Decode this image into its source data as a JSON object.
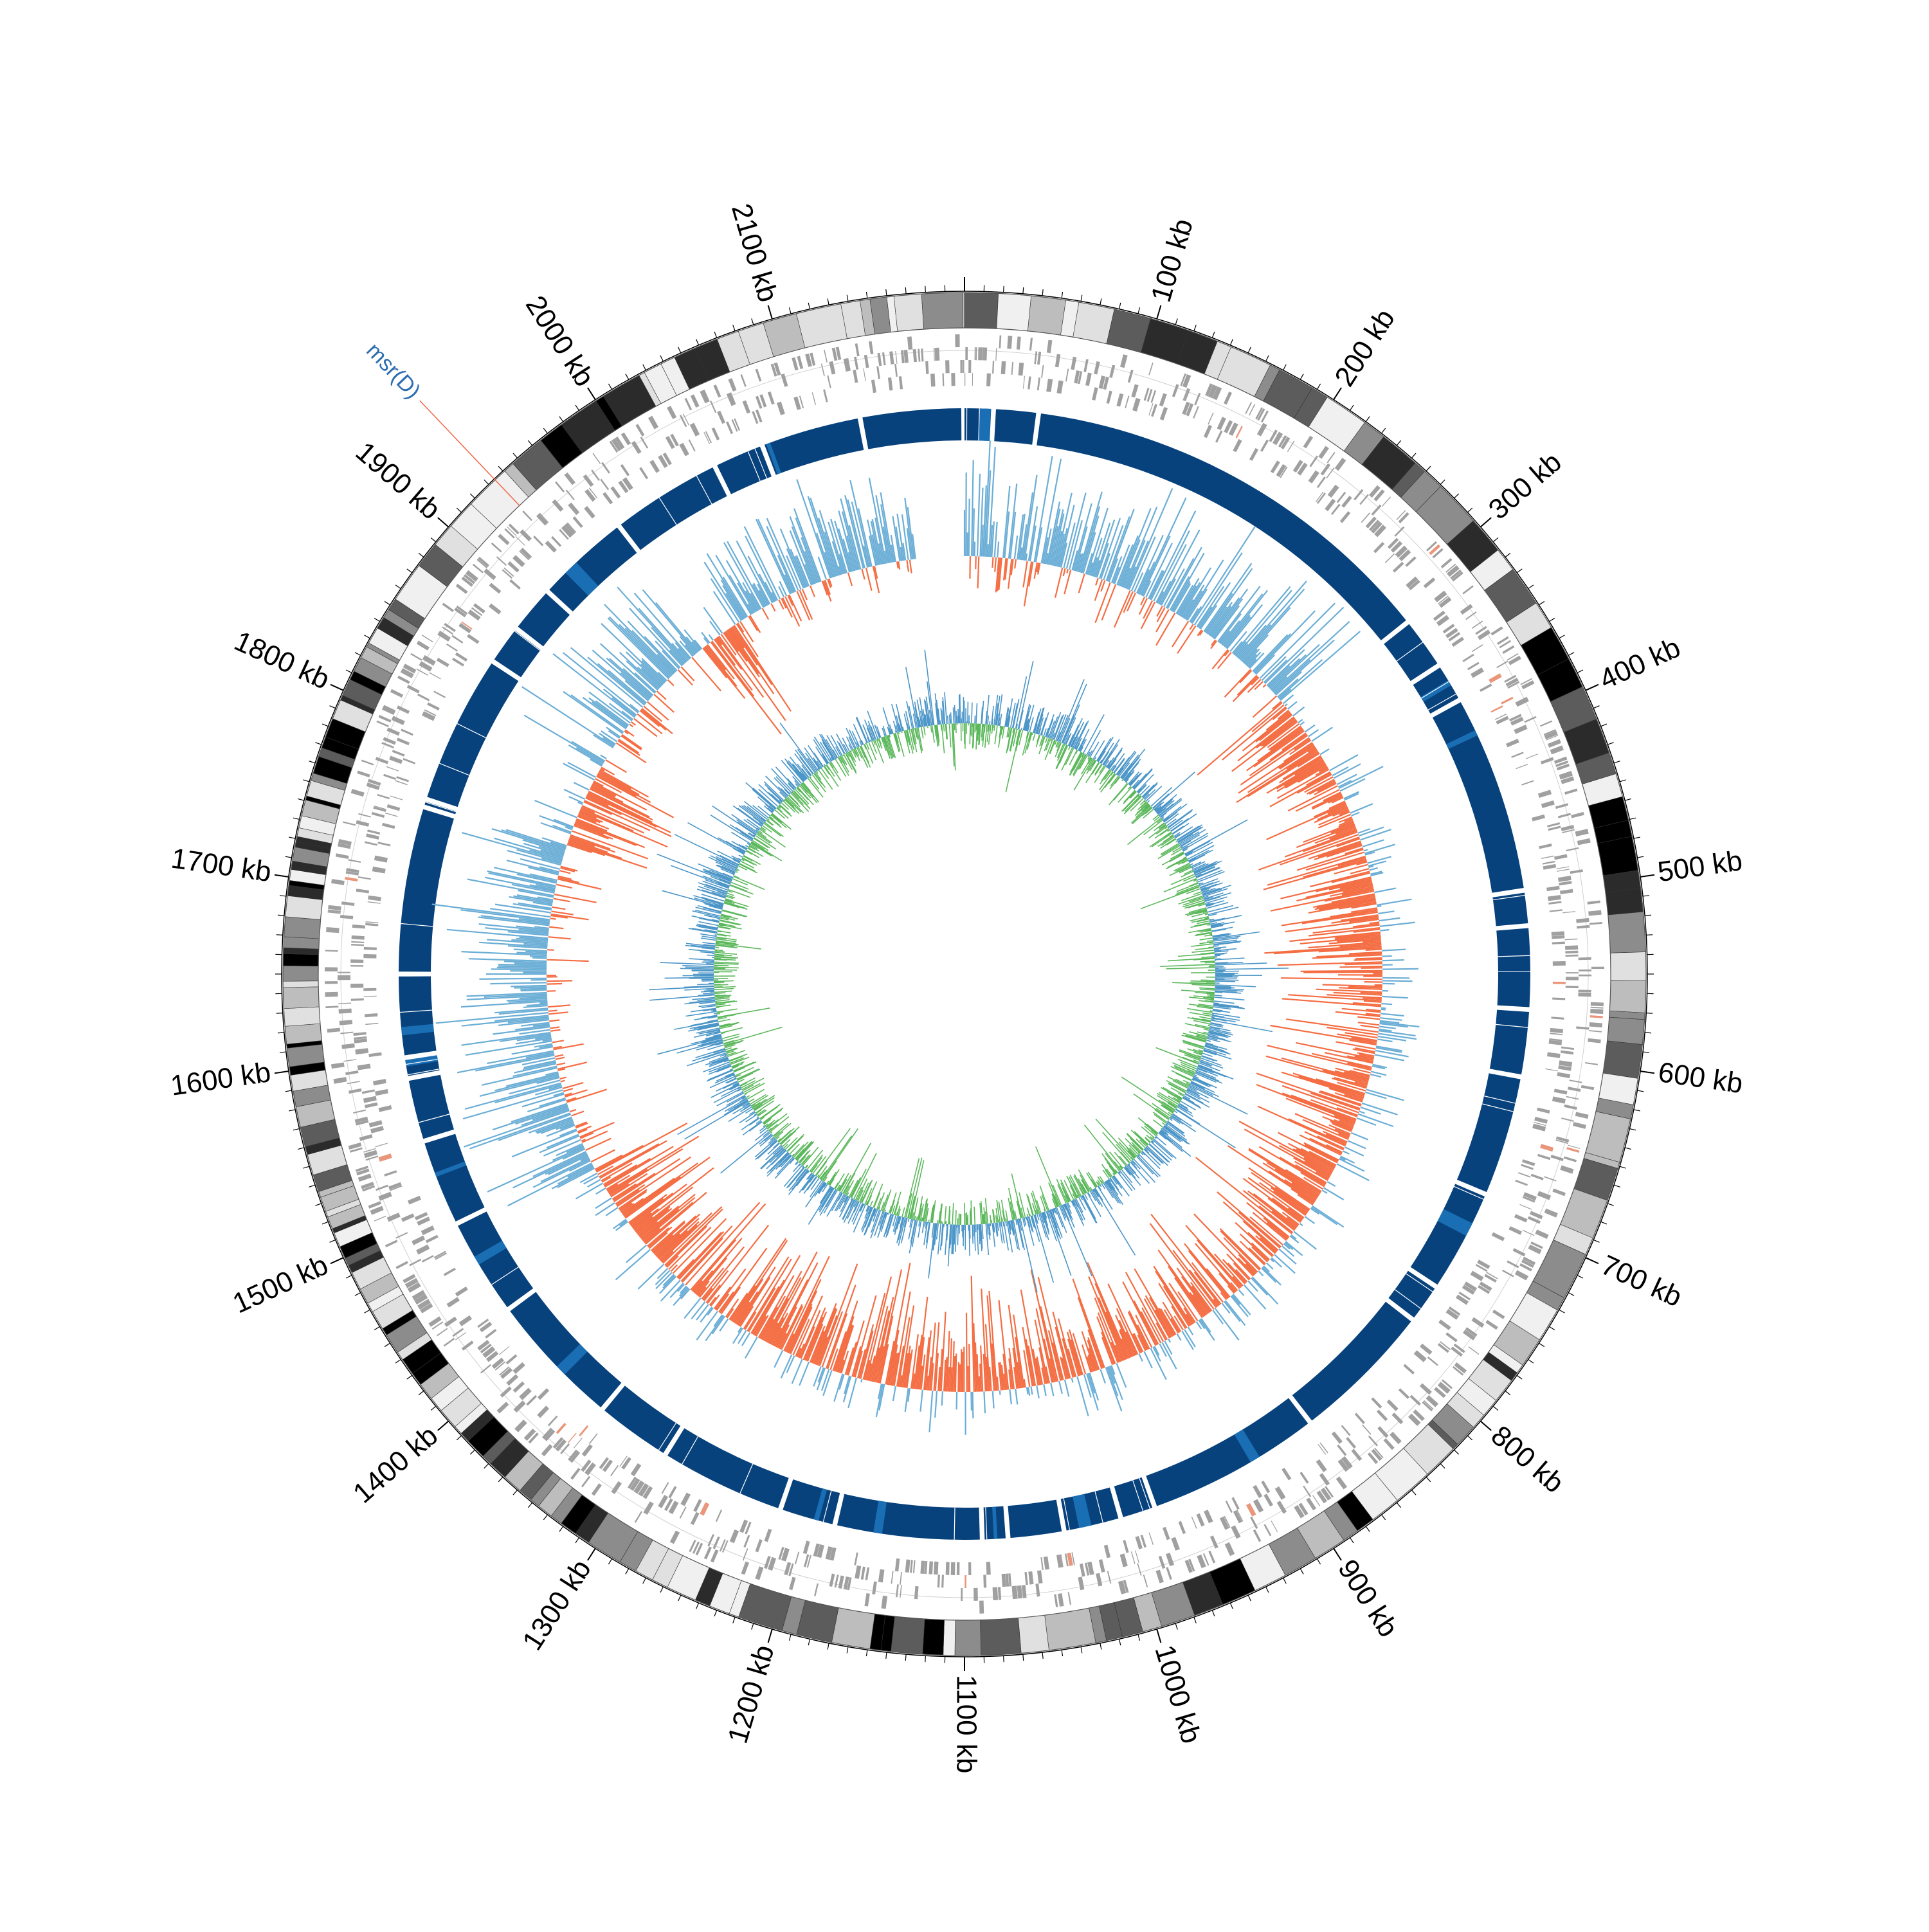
{
  "genome": {
    "length_kb": 2200,
    "minor_tick_kb": 10,
    "major_tick_kb": 100,
    "tick_labels": [
      {
        "kb": 100,
        "label": "100 kb"
      },
      {
        "kb": 200,
        "label": "200 kb"
      },
      {
        "kb": 300,
        "label": "300 kb"
      },
      {
        "kb": 400,
        "label": "400 kb"
      },
      {
        "kb": 500,
        "label": "500 kb"
      },
      {
        "kb": 600,
        "label": "600 kb"
      },
      {
        "kb": 700,
        "label": "700 kb"
      },
      {
        "kb": 800,
        "label": "800 kb"
      },
      {
        "kb": 900,
        "label": "900 kb"
      },
      {
        "kb": 1000,
        "label": "1000 kb"
      },
      {
        "kb": 1100,
        "label": "1100 kb"
      },
      {
        "kb": 1200,
        "label": "1200 kb"
      },
      {
        "kb": 1300,
        "label": "1300 kb"
      },
      {
        "kb": 1400,
        "label": "1400 kb"
      },
      {
        "kb": 1500,
        "label": "1500 kb"
      },
      {
        "kb": 1600,
        "label": "1600 kb"
      },
      {
        "kb": 1700,
        "label": "1700 kb"
      },
      {
        "kb": 1800,
        "label": "1800 kb"
      },
      {
        "kb": 1900,
        "label": "1900 kb"
      },
      {
        "kb": 2000,
        "label": "2000 kb"
      },
      {
        "kb": 2100,
        "label": "2100 kb"
      }
    ]
  },
  "annotations": [
    {
      "label": "msr(D)",
      "kb": 1934,
      "label_color": "#2b6cb0",
      "line_color": "#ee6a4a"
    }
  ],
  "tracks": {
    "contigs": {
      "palette": [
        "#000000",
        "#2b2b2b",
        "#5c5c5c",
        "#8c8c8c",
        "#bdbdbd",
        "#e0e0e0",
        "#f0f0f0"
      ]
    },
    "features": {
      "color": "#a0a0a0",
      "highlight": "#e9967a"
    },
    "alignment": {
      "color": "#08427d",
      "highlight": "#1a6fb4",
      "gaps_kb": [
        18,
        46,
        315,
        348,
        373,
        498,
        520,
        572,
        614,
        690,
        755,
        780,
        870,
        980,
        1002,
        1038,
        1073,
        1089,
        1181,
        1216,
        1295,
        1343,
        1428,
        1490,
        1545,
        1585,
        1598,
        1650,
        1755,
        1760,
        1855,
        1880,
        1910,
        1970,
        2040,
        2072,
        2135
      ]
    },
    "gc_skew": {
      "positive": "#6baed6",
      "negative": "#f46d43"
    },
    "gc_content": {
      "above": "#4c96c8",
      "below": "#5cb85c"
    }
  }
}
